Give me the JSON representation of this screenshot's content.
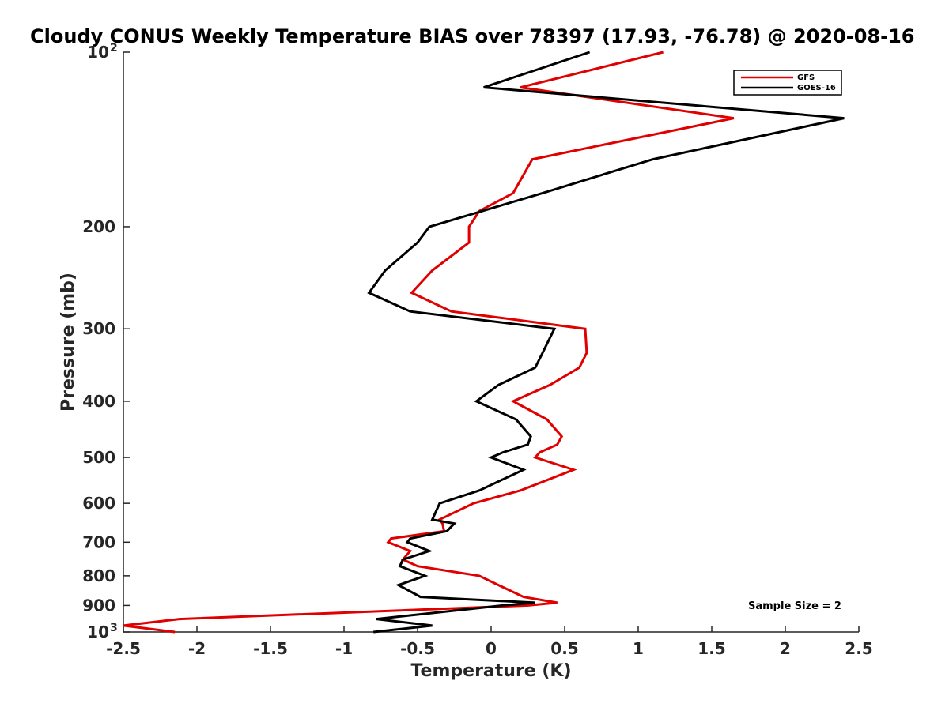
{
  "chart_data": {
    "type": "line",
    "title": "Cloudy CONUS Weekly Temperature BIAS over 78397 (17.93, -76.78) @ 2020-08-16",
    "xlabel": "Temperature (K)",
    "ylabel": "Pressure (mb)",
    "xlim": [
      -2.5,
      2.5
    ],
    "ylim": [
      100,
      1000
    ],
    "y_scale": "log",
    "y_reversed": true,
    "grid": false,
    "legend_position": "top-right",
    "x_ticks": [
      {
        "value": -2.5,
        "label": "-2.5"
      },
      {
        "value": -2,
        "label": "-2"
      },
      {
        "value": -1.5,
        "label": "-1.5"
      },
      {
        "value": -1,
        "label": "-1"
      },
      {
        "value": -0.5,
        "label": "-0.5"
      },
      {
        "value": 0,
        "label": "0"
      },
      {
        "value": 0.5,
        "label": "0.5"
      },
      {
        "value": 1,
        "label": "1"
      },
      {
        "value": 1.5,
        "label": "1.5"
      },
      {
        "value": 2,
        "label": "2"
      },
      {
        "value": 2.5,
        "label": "2.5"
      }
    ],
    "y_ticks": [
      {
        "value": 100,
        "label": "10",
        "sup": "2"
      },
      {
        "value": 200,
        "label": "200",
        "sup": ""
      },
      {
        "value": 300,
        "label": "300",
        "sup": ""
      },
      {
        "value": 400,
        "label": "400",
        "sup": ""
      },
      {
        "value": 500,
        "label": "500",
        "sup": ""
      },
      {
        "value": 600,
        "label": "600",
        "sup": ""
      },
      {
        "value": 700,
        "label": "700",
        "sup": ""
      },
      {
        "value": 800,
        "label": "800",
        "sup": ""
      },
      {
        "value": 900,
        "label": "900",
        "sup": ""
      },
      {
        "value": 1000,
        "label": "10",
        "sup": "3"
      }
    ],
    "series": [
      {
        "name": "GFS",
        "color": "#e00000",
        "points": [
          [
            1.17,
            100
          ],
          [
            0.2,
            115
          ],
          [
            1.65,
            130
          ],
          [
            0.28,
            153
          ],
          [
            0.15,
            175
          ],
          [
            -0.08,
            188
          ],
          [
            -0.15,
            200
          ],
          [
            -0.15,
            213
          ],
          [
            -0.4,
            238
          ],
          [
            -0.54,
            260
          ],
          [
            -0.27,
            280
          ],
          [
            0.64,
            300
          ],
          [
            0.65,
            330
          ],
          [
            0.6,
            350
          ],
          [
            0.4,
            375
          ],
          [
            0.15,
            400
          ],
          [
            0.38,
            430
          ],
          [
            0.48,
            460
          ],
          [
            0.45,
            475
          ],
          [
            0.33,
            490
          ],
          [
            0.3,
            500
          ],
          [
            0.56,
            525
          ],
          [
            0.2,
            570
          ],
          [
            -0.12,
            600
          ],
          [
            -0.35,
            640
          ],
          [
            -0.33,
            650
          ],
          [
            -0.32,
            670
          ],
          [
            -0.68,
            690
          ],
          [
            -0.7,
            700
          ],
          [
            -0.55,
            725
          ],
          [
            -0.6,
            750
          ],
          [
            -0.5,
            770
          ],
          [
            -0.08,
            800
          ],
          [
            0.05,
            830
          ],
          [
            0.22,
            870
          ],
          [
            0.45,
            890
          ],
          [
            0.25,
            900
          ],
          [
            -2.12,
            950
          ],
          [
            -2.5,
            975
          ],
          [
            -2.15,
            1000
          ]
        ]
      },
      {
        "name": "GOES-16",
        "color": "#000000",
        "points": [
          [
            0.67,
            100
          ],
          [
            -0.05,
            115
          ],
          [
            2.4,
            130
          ],
          [
            1.1,
            153
          ],
          [
            0.35,
            175
          ],
          [
            -0.42,
            200
          ],
          [
            -0.5,
            213
          ],
          [
            -0.72,
            238
          ],
          [
            -0.83,
            260
          ],
          [
            -0.55,
            280
          ],
          [
            0.43,
            300
          ],
          [
            0.35,
            330
          ],
          [
            0.3,
            350
          ],
          [
            0.05,
            375
          ],
          [
            -0.1,
            400
          ],
          [
            0.17,
            430
          ],
          [
            0.27,
            460
          ],
          [
            0.25,
            475
          ],
          [
            0.08,
            490
          ],
          [
            0.0,
            500
          ],
          [
            0.22,
            525
          ],
          [
            -0.08,
            570
          ],
          [
            -0.35,
            600
          ],
          [
            -0.4,
            640
          ],
          [
            -0.25,
            650
          ],
          [
            -0.3,
            670
          ],
          [
            -0.55,
            690
          ],
          [
            -0.57,
            700
          ],
          [
            -0.42,
            725
          ],
          [
            -0.6,
            750
          ],
          [
            -0.62,
            770
          ],
          [
            -0.45,
            800
          ],
          [
            -0.63,
            830
          ],
          [
            -0.48,
            870
          ],
          [
            0.3,
            890
          ],
          [
            0.08,
            900
          ],
          [
            -0.78,
            950
          ],
          [
            -0.4,
            975
          ],
          [
            -0.8,
            1000
          ]
        ]
      }
    ],
    "annotation": "Sample Size = 2"
  }
}
